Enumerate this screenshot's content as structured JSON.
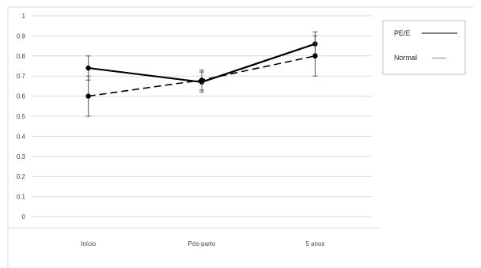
{
  "chart_data": {
    "type": "line",
    "title": "",
    "xlabel": "",
    "ylabel": "",
    "categories": [
      "Início",
      "Pós-parto",
      "5 anos"
    ],
    "ylim": [
      0,
      1
    ],
    "yticks": [
      "0",
      "0.1",
      "0.2",
      "0.3",
      "0.4",
      "0.5",
      "0.6",
      "0.7",
      "0.8",
      "0.9",
      "1"
    ],
    "grid": true,
    "legend_position": "right",
    "series": [
      {
        "name": "PE/E",
        "line_style": "solid",
        "color": "#000000",
        "values": [
          0.74,
          0.67,
          0.86
        ],
        "error_low": [
          0.68,
          0.62,
          0.81
        ],
        "error_high": [
          0.8,
          0.72,
          0.92
        ]
      },
      {
        "name": "Normal",
        "line_style": "dashed",
        "color": "#000000",
        "values": [
          0.6,
          0.68,
          0.8
        ],
        "error_low": [
          0.5,
          0.63,
          0.7
        ],
        "error_high": [
          0.7,
          0.73,
          0.9
        ]
      }
    ],
    "legend": {
      "pe_label": "PE/E",
      "normal_label": "Normal",
      "normal_dash_text": "------"
    }
  },
  "colors": {
    "grid": "#d9d9d9",
    "border": "#bfbfbf",
    "line": "#000000"
  }
}
